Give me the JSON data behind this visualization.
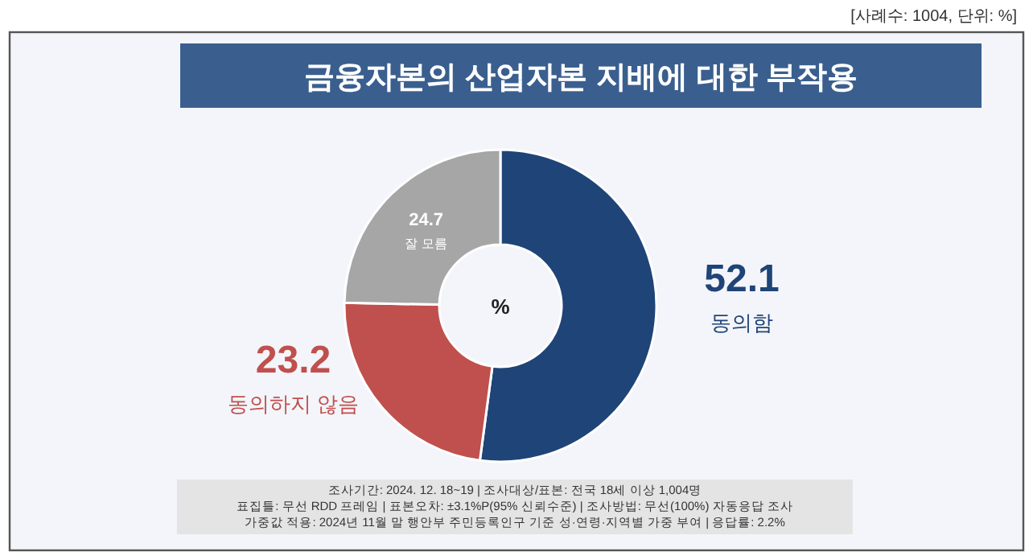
{
  "chart_data": {
    "type": "donut",
    "title": "금융자본의 산업자본 지배에 대한 부작용",
    "subtitle": "[사례수: 1004, 단위: %]",
    "categories": [
      "동의함",
      "동의하지 않음",
      "잘 모름"
    ],
    "values": [
      52.1,
      23.2,
      24.7
    ],
    "colors": [
      "#1f4477",
      "#c0504d",
      "#a6a6a6"
    ],
    "data_labels": true,
    "annotations": [
      "%",
      "조사기간: 2024. 12. 18~19 | 조사대상/표본: 전국 18세 이상 1,004명",
      "표집틀: 무선 RDD 프레임 | 표본오차: ±3.1%P(95% 신뢰수준) | 조사방법: 무선(100%) 자동응답 조사",
      "가중값 적용: 2024년 11월 말 행안부 주민등록인구 기준 성·연령·지역별 가중 부여 | 응답률: 2.2%"
    ]
  }
}
